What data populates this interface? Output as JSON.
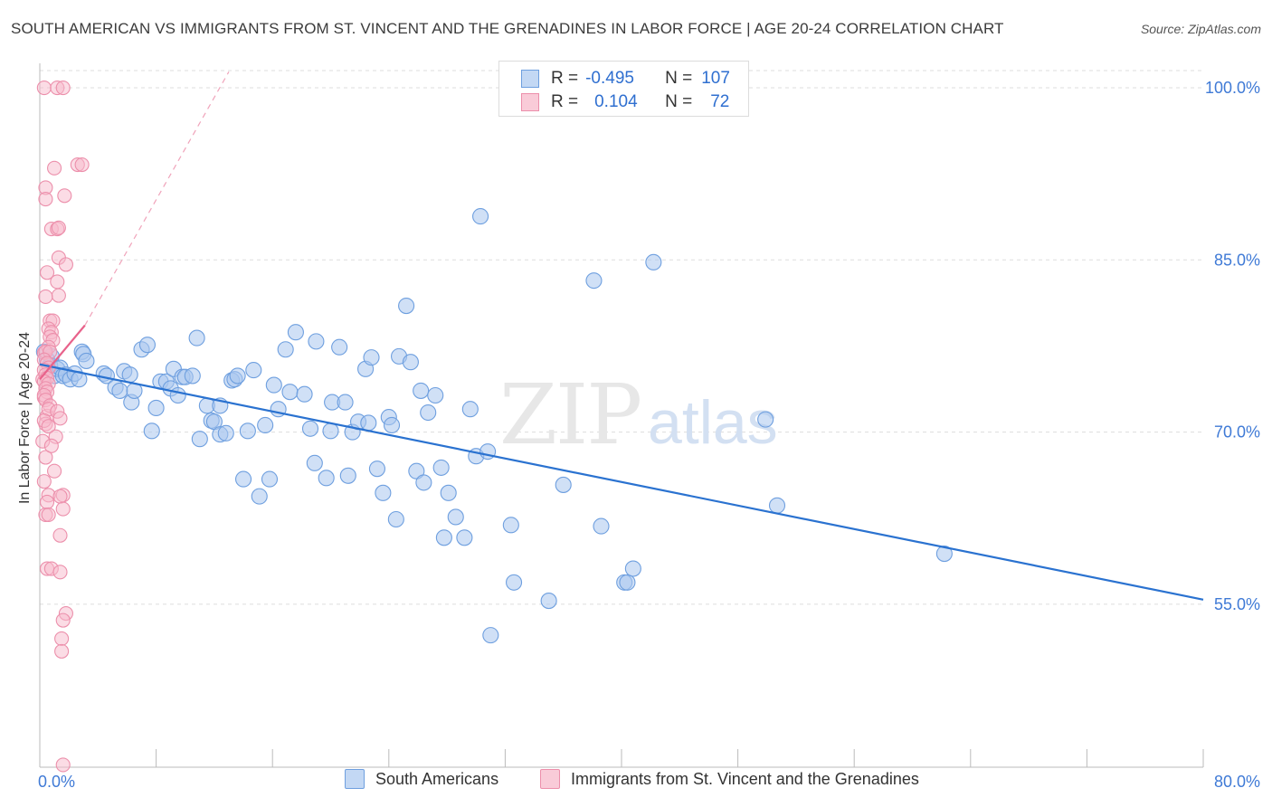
{
  "title": "SOUTH AMERICAN VS IMMIGRANTS FROM ST. VINCENT AND THE GRENADINES IN LABOR FORCE | AGE 20-24 CORRELATION CHART",
  "source": "Source: ZipAtlas.com",
  "watermark": {
    "zip": "ZIP",
    "atlas": "atlas"
  },
  "legend_top": [
    {
      "r_label": "R =",
      "r_value": "-0.495",
      "n_label": "N =",
      "n_value": "107"
    },
    {
      "r_label": "R =",
      "r_value": "0.104",
      "n_label": "N =",
      "n_value": "72"
    }
  ],
  "colors": {
    "blue_fill": "#a9c7ef",
    "blue_stroke": "#6e9fdf",
    "blue_line": "#2a72d0",
    "pink_fill": "#f7b9cb",
    "pink_stroke": "#ec8fab",
    "pink_line": "#e8628b",
    "tick_text": "#3f7ad6",
    "grid": "#dddddd"
  },
  "chart_data": {
    "type": "scatter",
    "title": "SOUTH AMERICAN VS IMMIGRANTS FROM ST. VINCENT AND THE GRENADINES IN LABOR FORCE | AGE 20-24 CORRELATION CHART",
    "xlabel": "",
    "ylabel": "In Labor Force | Age 20-24",
    "xlim": [
      0,
      80
    ],
    "ylim": [
      40.8,
      101.5
    ],
    "x_tick_labels": [
      "0.0%",
      "80.0%"
    ],
    "y_ticks": [
      55,
      70,
      85,
      100
    ],
    "y_tick_labels": [
      "55.0%",
      "70.0%",
      "85.0%",
      "100.0%"
    ],
    "grid": true,
    "legend_placement": "bottom",
    "series": [
      {
        "name": "South Americans",
        "color": "#a9c7ef",
        "r": -0.495,
        "n": 107,
        "trend": {
          "x": [
            0.0,
            80.0
          ],
          "y": [
            75.9,
            55.4
          ]
        },
        "points": [
          [
            0.3,
            77.0
          ],
          [
            0.5,
            76.3
          ],
          [
            0.7,
            75.8
          ],
          [
            0.8,
            76.6
          ],
          [
            1.0,
            74.9
          ],
          [
            1.2,
            75.5
          ],
          [
            1.4,
            75.6
          ],
          [
            1.6,
            74.9
          ],
          [
            1.8,
            75.0
          ],
          [
            2.1,
            74.6
          ],
          [
            2.4,
            75.1
          ],
          [
            2.7,
            74.6
          ],
          [
            2.9,
            77.0
          ],
          [
            3.0,
            76.8
          ],
          [
            3.2,
            76.2
          ],
          [
            4.4,
            75.1
          ],
          [
            4.6,
            74.9
          ],
          [
            5.2,
            73.9
          ],
          [
            5.5,
            73.6
          ],
          [
            5.8,
            75.3
          ],
          [
            6.2,
            75.0
          ],
          [
            6.3,
            72.6
          ],
          [
            6.5,
            73.6
          ],
          [
            7.0,
            77.2
          ],
          [
            7.4,
            77.6
          ],
          [
            7.7,
            70.1
          ],
          [
            8.0,
            72.1
          ],
          [
            8.3,
            74.4
          ],
          [
            8.7,
            74.4
          ],
          [
            9.0,
            73.8
          ],
          [
            9.2,
            75.5
          ],
          [
            9.5,
            73.2
          ],
          [
            9.8,
            74.8
          ],
          [
            10.0,
            74.8
          ],
          [
            10.5,
            74.9
          ],
          [
            10.8,
            78.2
          ],
          [
            11.0,
            69.4
          ],
          [
            11.5,
            72.3
          ],
          [
            11.8,
            71.0
          ],
          [
            12.0,
            70.9
          ],
          [
            12.4,
            69.8
          ],
          [
            12.4,
            72.3
          ],
          [
            12.8,
            69.9
          ],
          [
            13.2,
            74.5
          ],
          [
            13.4,
            74.6
          ],
          [
            13.6,
            74.9
          ],
          [
            14.0,
            65.9
          ],
          [
            14.3,
            70.1
          ],
          [
            14.7,
            75.4
          ],
          [
            15.1,
            64.4
          ],
          [
            15.5,
            70.6
          ],
          [
            15.8,
            65.9
          ],
          [
            16.1,
            74.1
          ],
          [
            16.4,
            72.0
          ],
          [
            16.9,
            77.2
          ],
          [
            17.2,
            73.5
          ],
          [
            17.6,
            78.7
          ],
          [
            18.2,
            73.3
          ],
          [
            18.6,
            70.3
          ],
          [
            18.9,
            67.3
          ],
          [
            19.0,
            77.9
          ],
          [
            19.7,
            66.0
          ],
          [
            20.0,
            70.1
          ],
          [
            20.1,
            72.6
          ],
          [
            20.6,
            77.4
          ],
          [
            21.0,
            72.6
          ],
          [
            21.2,
            66.2
          ],
          [
            21.5,
            70.0
          ],
          [
            21.9,
            70.9
          ],
          [
            22.4,
            75.5
          ],
          [
            22.6,
            70.8
          ],
          [
            22.8,
            76.5
          ],
          [
            23.2,
            66.8
          ],
          [
            23.6,
            64.7
          ],
          [
            24.0,
            71.3
          ],
          [
            24.2,
            70.6
          ],
          [
            24.5,
            62.4
          ],
          [
            24.7,
            76.6
          ],
          [
            25.2,
            81.0
          ],
          [
            25.5,
            76.1
          ],
          [
            25.9,
            66.6
          ],
          [
            26.2,
            73.6
          ],
          [
            26.4,
            65.6
          ],
          [
            26.7,
            71.7
          ],
          [
            27.2,
            73.2
          ],
          [
            27.6,
            66.9
          ],
          [
            27.8,
            60.8
          ],
          [
            28.1,
            64.7
          ],
          [
            28.6,
            62.6
          ],
          [
            29.2,
            60.8
          ],
          [
            29.6,
            72.0
          ],
          [
            30.0,
            67.9
          ],
          [
            30.3,
            88.8
          ],
          [
            30.8,
            68.3
          ],
          [
            31.0,
            52.3
          ],
          [
            32.4,
            61.9
          ],
          [
            32.6,
            56.9
          ],
          [
            35.0,
            55.3
          ],
          [
            36.0,
            65.4
          ],
          [
            38.1,
            83.2
          ],
          [
            38.6,
            61.8
          ],
          [
            40.2,
            56.9
          ],
          [
            40.4,
            56.9
          ],
          [
            40.8,
            58.1
          ],
          [
            42.2,
            84.8
          ],
          [
            49.9,
            71.1
          ],
          [
            50.7,
            63.6
          ],
          [
            62.2,
            59.4
          ]
        ]
      },
      {
        "name": "Immigrants from St. Vincent and the Grenadines",
        "color": "#f7b9cb",
        "r": 0.104,
        "n": 72,
        "trend": {
          "x": [
            0.0,
            3.1
          ],
          "y": [
            74.6,
            79.3
          ]
        },
        "trend_extension": {
          "x": [
            3.1,
            13.0
          ],
          "y": [
            79.3,
            101.4
          ]
        },
        "points": [
          [
            0.3,
            76.9
          ],
          [
            0.2,
            74.6
          ],
          [
            0.3,
            73.0
          ],
          [
            0.5,
            71.4
          ],
          [
            0.4,
            70.7
          ],
          [
            0.2,
            69.2
          ],
          [
            0.4,
            67.8
          ],
          [
            0.3,
            65.7
          ],
          [
            0.6,
            64.5
          ],
          [
            0.4,
            62.8
          ],
          [
            0.5,
            58.1
          ],
          [
            0.8,
            58.1
          ],
          [
            0.5,
            63.9
          ],
          [
            0.6,
            62.8
          ],
          [
            0.3,
            100.0
          ],
          [
            1.2,
            100.0
          ],
          [
            1.6,
            100.0
          ],
          [
            1.0,
            93.0
          ],
          [
            2.6,
            93.3
          ],
          [
            2.9,
            93.3
          ],
          [
            0.4,
            91.3
          ],
          [
            0.4,
            90.3
          ],
          [
            1.7,
            90.6
          ],
          [
            0.8,
            87.7
          ],
          [
            1.2,
            87.7
          ],
          [
            1.3,
            87.8
          ],
          [
            1.3,
            85.2
          ],
          [
            1.8,
            84.6
          ],
          [
            0.5,
            83.9
          ],
          [
            1.2,
            83.1
          ],
          [
            1.3,
            81.9
          ],
          [
            0.4,
            81.8
          ],
          [
            0.7,
            79.7
          ],
          [
            0.9,
            79.7
          ],
          [
            0.6,
            79.0
          ],
          [
            0.8,
            78.7
          ],
          [
            0.7,
            78.3
          ],
          [
            0.9,
            78.0
          ],
          [
            0.6,
            77.4
          ],
          [
            0.4,
            77.0
          ],
          [
            0.7,
            77.0
          ],
          [
            0.3,
            76.3
          ],
          [
            0.5,
            76.0
          ],
          [
            0.6,
            75.6
          ],
          [
            0.3,
            75.4
          ],
          [
            0.4,
            75.0
          ],
          [
            0.5,
            74.7
          ],
          [
            0.3,
            74.4
          ],
          [
            0.6,
            74.2
          ],
          [
            0.4,
            73.8
          ],
          [
            0.5,
            73.5
          ],
          [
            0.3,
            73.2
          ],
          [
            0.4,
            72.8
          ],
          [
            0.7,
            72.3
          ],
          [
            0.6,
            72.0
          ],
          [
            1.2,
            71.8
          ],
          [
            1.4,
            71.2
          ],
          [
            0.3,
            71.0
          ],
          [
            0.6,
            70.5
          ],
          [
            1.1,
            69.6
          ],
          [
            0.8,
            68.8
          ],
          [
            1.0,
            66.6
          ],
          [
            1.6,
            64.5
          ],
          [
            1.4,
            64.4
          ],
          [
            1.6,
            63.3
          ],
          [
            1.4,
            61.0
          ],
          [
            1.4,
            57.8
          ],
          [
            1.8,
            54.2
          ],
          [
            1.6,
            53.6
          ],
          [
            1.5,
            52.0
          ],
          [
            1.5,
            50.9
          ],
          [
            1.6,
            41.0
          ]
        ]
      }
    ]
  },
  "legend_bottom": [
    {
      "label": "South Americans"
    },
    {
      "label": "Immigrants from St. Vincent and the Grenadines"
    }
  ]
}
